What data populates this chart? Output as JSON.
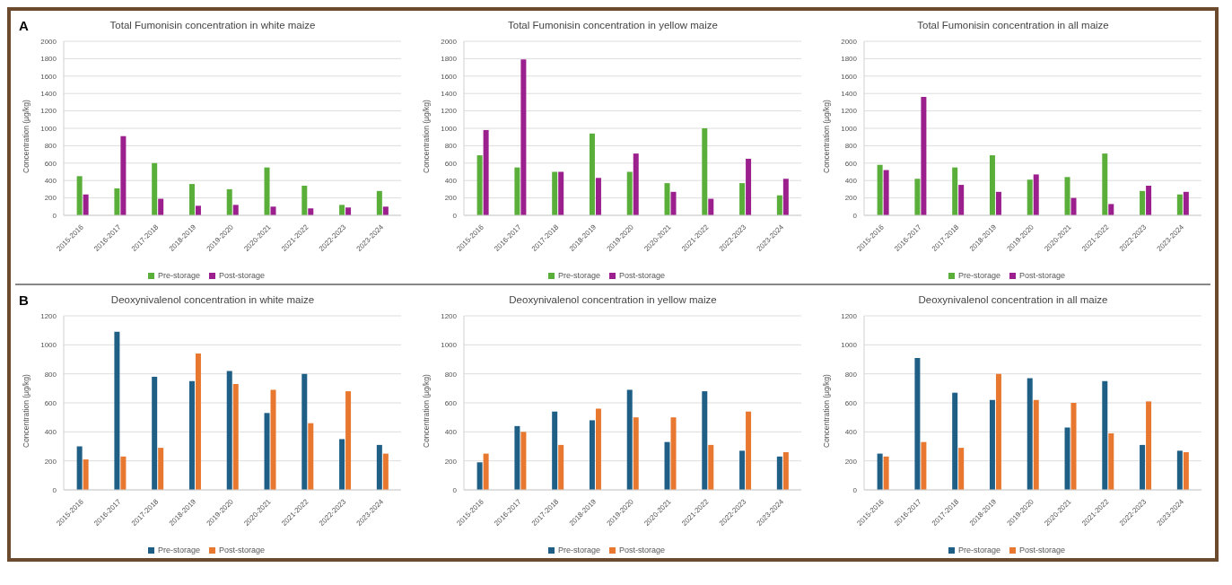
{
  "chart_data": [
    {
      "type": "bar",
      "title": "Total Fumonisin concentration in white maize",
      "ylabel": "Concentration (µg/kg)",
      "annotations": [
        "A"
      ],
      "categories": [
        "2015-2016",
        "2016-2017",
        "2017-2018",
        "2018-2019",
        "2019-2020",
        "2020-2021",
        "2021-2022",
        "2022-2023",
        "2023-2024"
      ],
      "series": [
        {
          "name": "Pre-storage",
          "color": "#5aae3a",
          "values": [
            450,
            310,
            600,
            360,
            300,
            550,
            340,
            120,
            280
          ]
        },
        {
          "name": "Post-storage",
          "color": "#9c1f8e",
          "values": [
            240,
            910,
            190,
            110,
            120,
            100,
            80,
            90,
            100
          ]
        }
      ],
      "ylim": [
        0,
        2000
      ],
      "yticks": [
        0,
        200,
        400,
        600,
        800,
        1000,
        1200,
        1400,
        1600,
        1800,
        2000
      ],
      "grid": "y",
      "legend": "bottom"
    },
    {
      "type": "bar",
      "title": "Total Fumonisin concentration in yellow maize",
      "ylabel": "Concentration (µg/kg)",
      "categories": [
        "2015-2016",
        "2016-2017",
        "2017-2018",
        "2018-2019",
        "2019-2020",
        "2020-2021",
        "2021-2022",
        "2022-2023",
        "2023-2024"
      ],
      "series": [
        {
          "name": "Pre-storage",
          "color": "#5aae3a",
          "values": [
            690,
            550,
            500,
            940,
            500,
            370,
            1000,
            370,
            230
          ]
        },
        {
          "name": "Post-storage",
          "color": "#9c1f8e",
          "values": [
            980,
            1790,
            500,
            430,
            710,
            270,
            190,
            650,
            420
          ]
        }
      ],
      "ylim": [
        0,
        2000
      ],
      "yticks": [
        0,
        200,
        400,
        600,
        800,
        1000,
        1200,
        1400,
        1600,
        1800,
        2000
      ],
      "grid": "y",
      "legend": "bottom"
    },
    {
      "type": "bar",
      "title": "Total Fumonisin concentration in all maize",
      "ylabel": "Concentration (µg/kg)",
      "categories": [
        "2015-2016",
        "2016-2017",
        "2017-2018",
        "2018-2019",
        "2019-2020",
        "2020-2021",
        "2021-2022",
        "2022-2023",
        "2023-2024"
      ],
      "series": [
        {
          "name": "Pre-storage",
          "color": "#5aae3a",
          "values": [
            580,
            420,
            550,
            690,
            410,
            440,
            710,
            280,
            240
          ]
        },
        {
          "name": "Post-storage",
          "color": "#9c1f8e",
          "values": [
            520,
            1360,
            350,
            270,
            470,
            200,
            130,
            340,
            270
          ]
        }
      ],
      "ylim": [
        0,
        2000
      ],
      "yticks": [
        0,
        200,
        400,
        600,
        800,
        1000,
        1200,
        1400,
        1600,
        1800,
        2000
      ],
      "grid": "y",
      "legend": "bottom"
    },
    {
      "type": "bar",
      "title": "Deoxynivalenol concentration in white maize",
      "ylabel": "Concentration (µg/kg)",
      "annotations": [
        "B"
      ],
      "categories": [
        "2015-2016",
        "2016-2017",
        "2017-2018",
        "2018-2019",
        "2019-2020",
        "2020-2021",
        "2021-2022",
        "2022-2023",
        "2023-2024"
      ],
      "series": [
        {
          "name": "Pre-storage",
          "color": "#1f5f86",
          "values": [
            300,
            1090,
            780,
            750,
            820,
            530,
            800,
            350,
            310
          ]
        },
        {
          "name": "Post-storage",
          "color": "#e8782f",
          "values": [
            210,
            230,
            290,
            940,
            730,
            690,
            460,
            680,
            250
          ]
        }
      ],
      "ylim": [
        0,
        1200
      ],
      "yticks": [
        0,
        200,
        400,
        600,
        800,
        1000,
        1200
      ],
      "grid": "y",
      "legend": "bottom"
    },
    {
      "type": "bar",
      "title": "Deoxynivalenol concentration in yellow maize",
      "ylabel": "Concentration (µg/kg)",
      "categories": [
        "2015-2016",
        "2016-2017",
        "2017-2018",
        "2018-2019",
        "2019-2020",
        "2020-2021",
        "2021-2022",
        "2022-2023",
        "2023-2024"
      ],
      "series": [
        {
          "name": "Pre-storage",
          "color": "#1f5f86",
          "values": [
            190,
            440,
            540,
            480,
            690,
            330,
            680,
            270,
            230
          ]
        },
        {
          "name": "Post-storage",
          "color": "#e8782f",
          "values": [
            250,
            400,
            310,
            560,
            500,
            500,
            310,
            540,
            260
          ]
        }
      ],
      "ylim": [
        0,
        1200
      ],
      "yticks": [
        0,
        200,
        400,
        600,
        800,
        1000,
        1200
      ],
      "grid": "y",
      "legend": "bottom"
    },
    {
      "type": "bar",
      "title": "Deoxynivalenol concentration in all maize",
      "ylabel": "Concentration (µg/kg)",
      "categories": [
        "2015-2016",
        "2016-2017",
        "2017-2018",
        "2018-2019",
        "2019-2020",
        "2020-2021",
        "2021-2022",
        "2022-2023",
        "2023-2024"
      ],
      "series": [
        {
          "name": "Pre-storage",
          "color": "#1f5f86",
          "values": [
            250,
            910,
            670,
            620,
            770,
            430,
            750,
            310,
            270
          ]
        },
        {
          "name": "Post-storage",
          "color": "#e8782f",
          "values": [
            230,
            330,
            290,
            800,
            620,
            600,
            390,
            610,
            260
          ]
        }
      ],
      "ylim": [
        0,
        1200
      ],
      "yticks": [
        0,
        200,
        400,
        600,
        800,
        1000,
        1200
      ],
      "grid": "y",
      "legend": "bottom"
    }
  ]
}
